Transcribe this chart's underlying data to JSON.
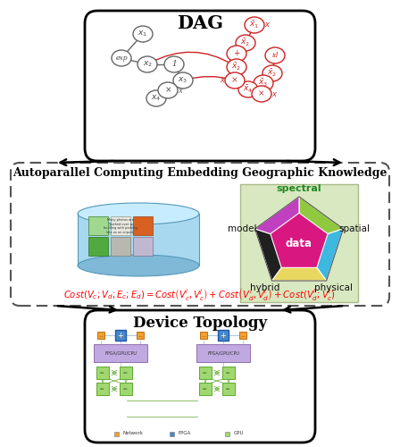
{
  "dag_title": "DAG",
  "middle_title": "Autoparallel Computing Embedding Geographic Knowledge",
  "bottom_title": "Device Topology",
  "background_color": "#ffffff",
  "pent_colors": [
    "#90c840",
    "#3db8e0",
    "#e8d860",
    "#202020",
    "#c040c0"
  ],
  "pent_data_color": "#d81880",
  "pent_labels": [
    "spectral",
    "spatial",
    "physical",
    "hybrid",
    "model"
  ],
  "pent_bg": "#d8e8c0",
  "cost_formula": "Cost_formula",
  "dag_node_grey": "#666666",
  "dag_node_red": "#cc2222",
  "cyl_body": "#a8d8f0",
  "cyl_top": "#c8ecff",
  "cyl_bot": "#80b8d8",
  "arrow_lw": 1.8
}
